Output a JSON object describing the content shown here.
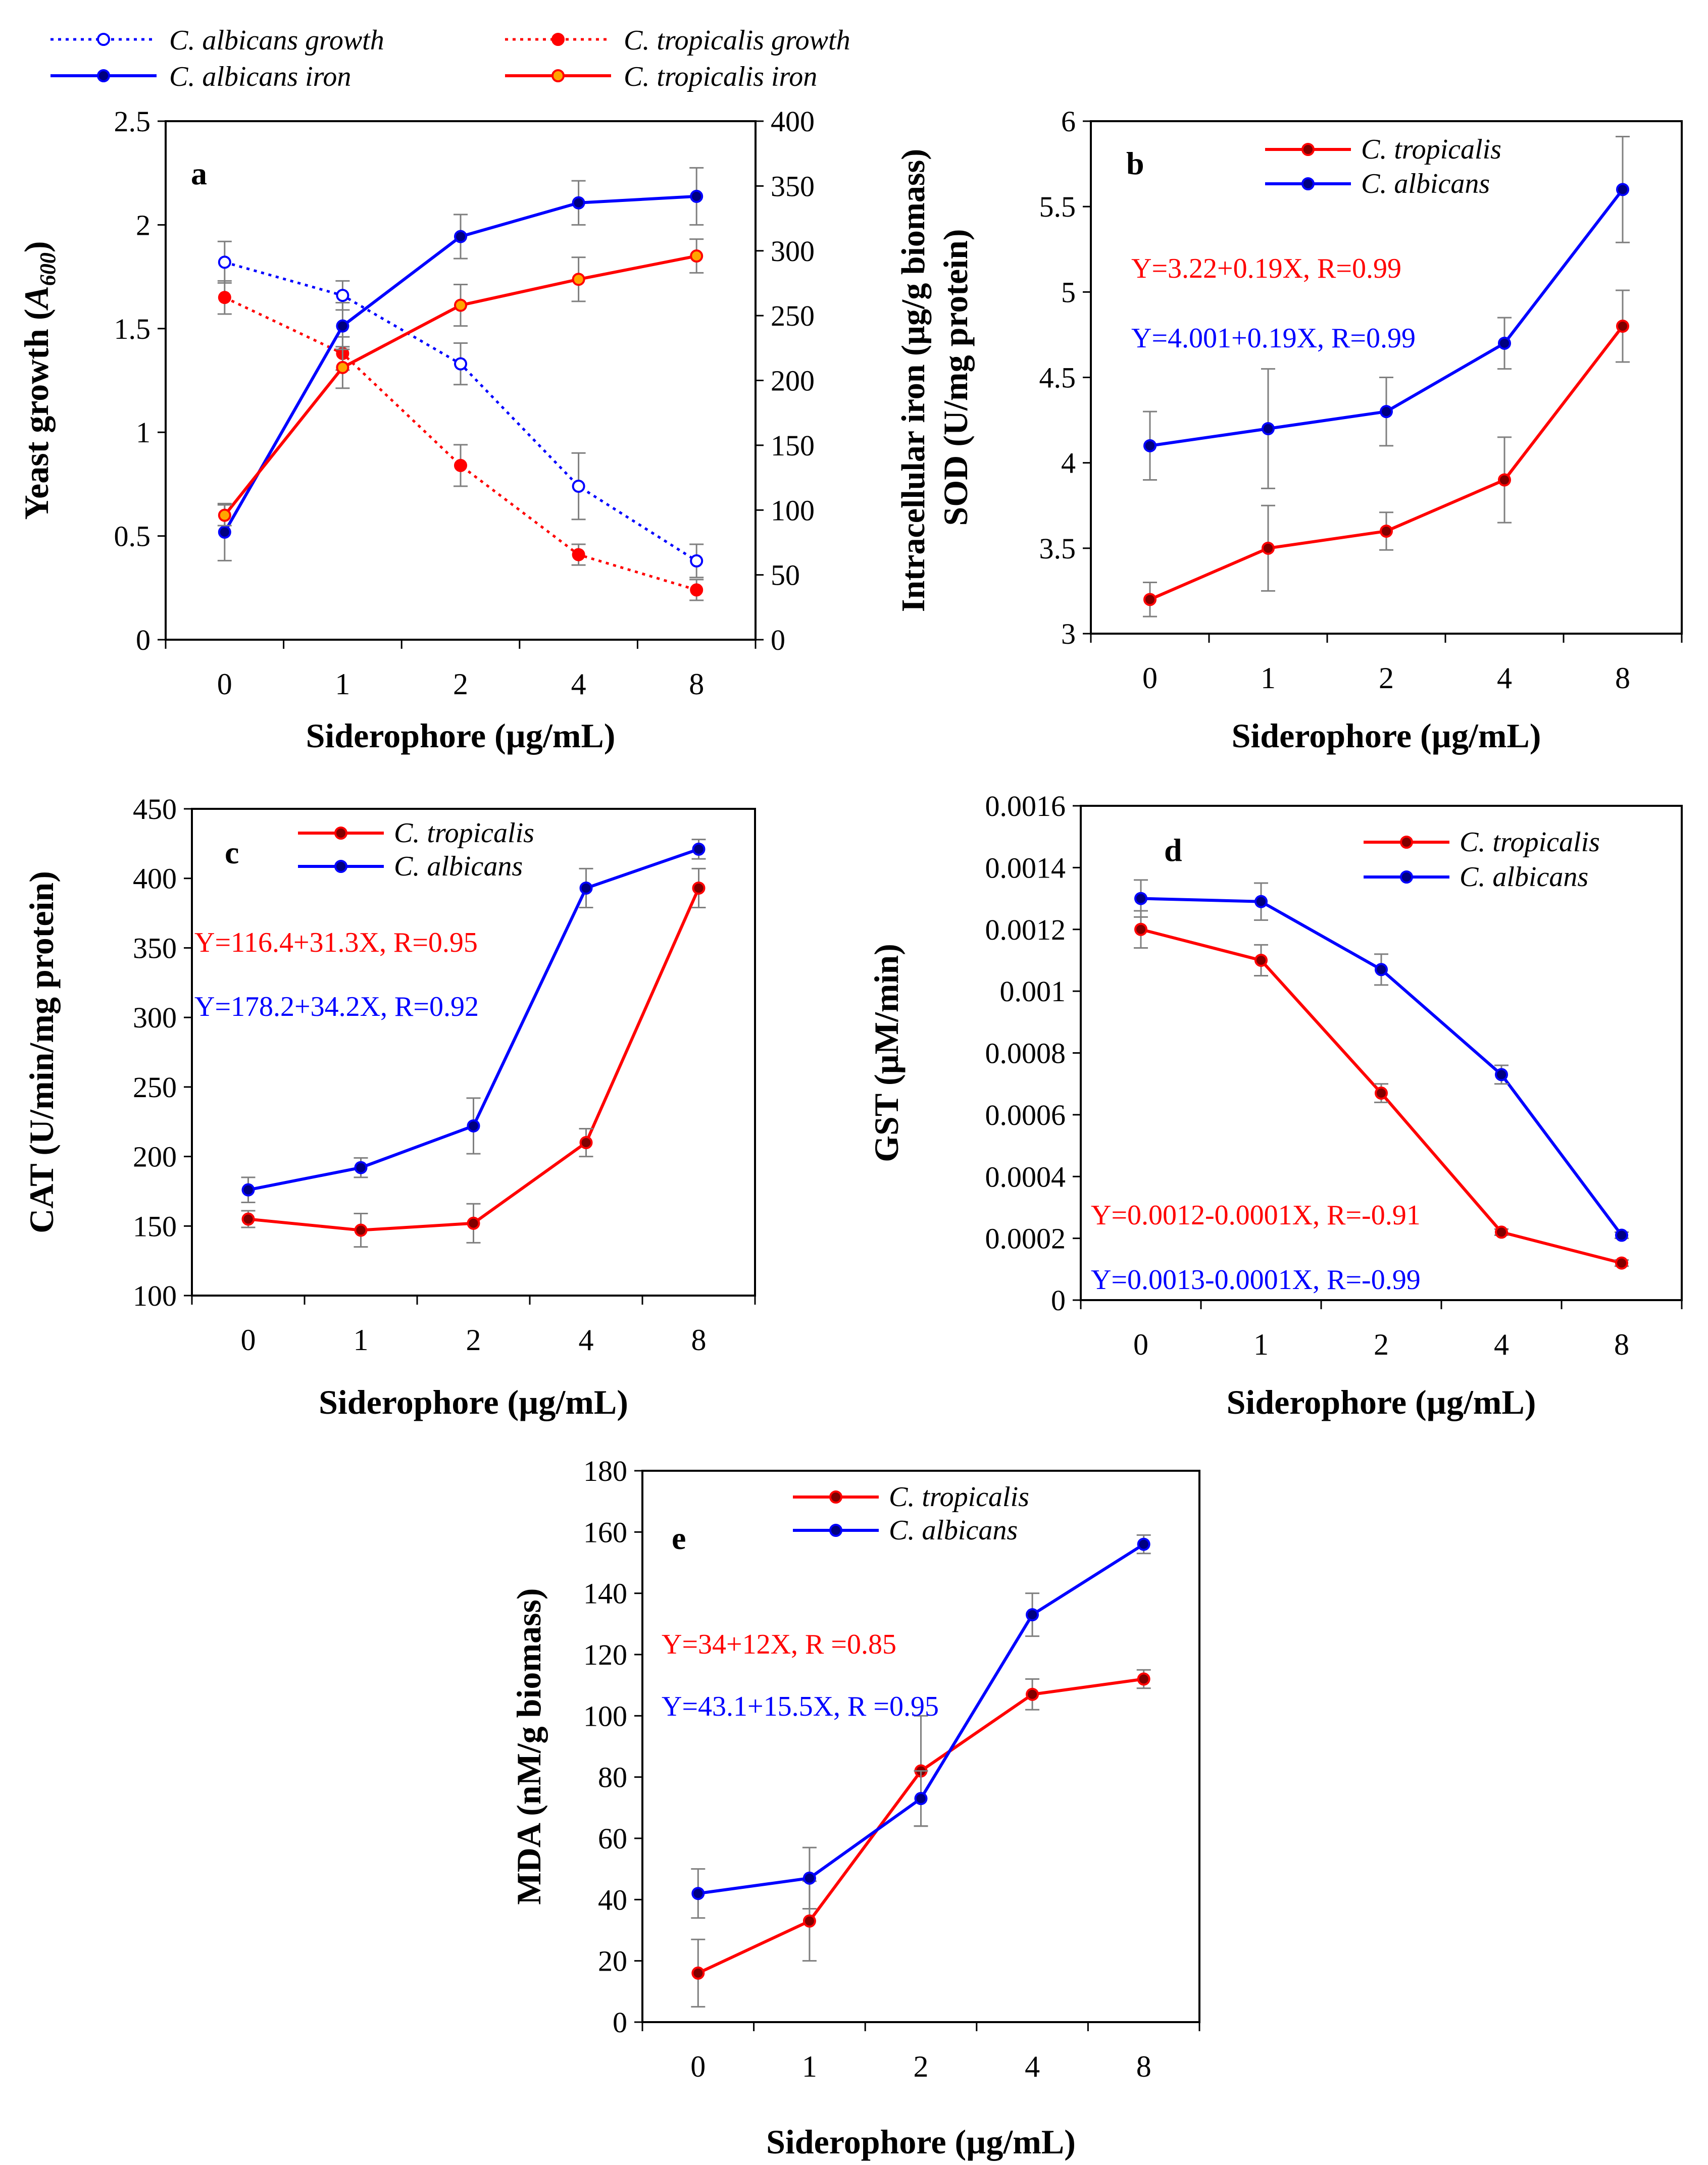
{
  "figure": {
    "x_label": "Siderophore (µg/mL)",
    "categories": [
      "0",
      "1",
      "2",
      "4",
      "8"
    ],
    "colors": {
      "red": "#ff0000",
      "blue": "#0000ff",
      "orange": "#ffa500",
      "dark_blue": "#00007f",
      "error": "#7f7f7f"
    }
  },
  "chart_data": [
    {
      "id": "a",
      "panel_label": "a",
      "type": "line",
      "categories": [
        "0",
        "1",
        "2",
        "4",
        "8"
      ],
      "xlabel": "Siderophore (µg/mL)",
      "ylabel": "Yeast growth (A600)",
      "ylabel_parts": [
        "Yeast growth (",
        "A",
        "600",
        ")"
      ],
      "ylim": [
        0,
        2.5
      ],
      "yticks": [
        0,
        0.5,
        1,
        1.5,
        2,
        2.5
      ],
      "ytick_labels": [
        "0",
        "0.5",
        "1",
        "1.5",
        "2",
        "2.5"
      ],
      "y2label": "Intracellular iron (µg/g biomass)",
      "y2lim": [
        0,
        400
      ],
      "y2ticks": [
        0,
        50,
        100,
        150,
        200,
        250,
        300,
        350,
        400
      ],
      "y2tick_labels": [
        "0",
        "50",
        "100",
        "150",
        "200",
        "250",
        "300",
        "350",
        "400"
      ],
      "legend": "top",
      "series": [
        {
          "name": "C. albicans growth",
          "axis": "left",
          "style": "dotted",
          "color": "#0000ff",
          "marker": "open",
          "values": [
            1.82,
            1.66,
            1.33,
            0.74,
            0.38
          ],
          "errors": [
            0.1,
            0.07,
            0.1,
            0.16,
            0.08
          ]
        },
        {
          "name": "C. tropicalis growth",
          "axis": "left",
          "style": "dotted",
          "color": "#ff0000",
          "marker": "filled",
          "marker_color": "#ff0000",
          "values": [
            1.65,
            1.38,
            0.84,
            0.41,
            0.24
          ],
          "errors": [
            0.08,
            0.08,
            0.1,
            0.05,
            0.05
          ]
        },
        {
          "name": "C. albicans iron",
          "axis": "right",
          "style": "solid",
          "color": "#0000ff",
          "marker": "filled",
          "marker_color": "#00007f",
          "values": [
            83,
            242,
            311,
            337,
            342
          ],
          "errors": [
            22,
            18,
            17,
            17,
            22
          ]
        },
        {
          "name": "C. tropicalis iron",
          "axis": "right",
          "style": "solid",
          "color": "#ff0000",
          "marker": "filled",
          "marker_color": "#ffa500",
          "values": [
            96,
            210,
            258,
            278,
            296
          ],
          "errors": [
            8,
            16,
            16,
            17,
            13
          ]
        }
      ]
    },
    {
      "id": "b",
      "panel_label": "b",
      "type": "line",
      "categories": [
        "0",
        "1",
        "2",
        "4",
        "8"
      ],
      "xlabel": "Siderophore (µg/mL)",
      "ylabel": "SOD (U/mg protein)",
      "ylim": [
        3,
        6
      ],
      "yticks": [
        3,
        3.5,
        4,
        4.5,
        5,
        5.5,
        6
      ],
      "ytick_labels": [
        "3",
        "3.5",
        "4",
        "4.5",
        "5",
        "5.5",
        "6"
      ],
      "legend": "top-center",
      "equations": [
        "Y=3.22+0.19X, R=0.99",
        "Y=4.001+0.19X, R=0.99"
      ],
      "series": [
        {
          "name": "C. tropicalis",
          "color": "#ff0000",
          "values": [
            3.2,
            3.5,
            3.6,
            3.9,
            4.8
          ],
          "errors": [
            0.1,
            0.25,
            0.11,
            0.25,
            0.21
          ]
        },
        {
          "name": "C. albicans",
          "color": "#0000ff",
          "values": [
            4.1,
            4.2,
            4.3,
            4.7,
            5.6
          ],
          "errors": [
            0.2,
            0.35,
            0.2,
            0.15,
            0.31
          ]
        }
      ]
    },
    {
      "id": "c",
      "panel_label": "c",
      "type": "line",
      "categories": [
        "0",
        "1",
        "2",
        "4",
        "8"
      ],
      "xlabel": "Siderophore (µg/mL)",
      "ylabel": "CAT (U/min/mg protein)",
      "ylim": [
        100,
        450
      ],
      "yticks": [
        100,
        150,
        200,
        250,
        300,
        350,
        400,
        450
      ],
      "ytick_labels": [
        "100",
        "150",
        "200",
        "250",
        "300",
        "350",
        "400",
        "450"
      ],
      "legend": "top-center",
      "equations": [
        "Y=116.4+31.3X, R=0.95",
        "Y=178.2+34.2X, R=0.92"
      ],
      "series": [
        {
          "name": "C. tropicalis",
          "color": "#ff0000",
          "values": [
            155,
            147,
            152,
            210,
            393
          ],
          "errors": [
            6,
            12,
            14,
            10,
            14
          ]
        },
        {
          "name": "C. albicans",
          "color": "#0000ff",
          "values": [
            176,
            192,
            222,
            393,
            421
          ],
          "errors": [
            9,
            7,
            20,
            14,
            7
          ]
        }
      ]
    },
    {
      "id": "d",
      "panel_label": "d",
      "type": "line",
      "categories": [
        "0",
        "1",
        "2",
        "4",
        "8"
      ],
      "xlabel": "Siderophore (µg/mL)",
      "ylabel": "GST (µM/min)",
      "ylim": [
        0,
        0.0016
      ],
      "yticks": [
        0,
        0.0002,
        0.0004,
        0.0006,
        0.0008,
        0.001,
        0.0012,
        0.0014,
        0.0016
      ],
      "ytick_labels": [
        "0",
        "0.0002",
        "0.0004",
        "0.0006",
        "0.0008",
        "0.001",
        "0.0012",
        "0.0014",
        "0.0016"
      ],
      "legend": "top-right",
      "equations": [
        "Y=0.0012-0.0001X, R=-0.91",
        "Y=0.0013-0.0001X, R=-0.99"
      ],
      "series": [
        {
          "name": "C. tropicalis",
          "color": "#ff0000",
          "values": [
            0.0012,
            0.0011,
            0.00067,
            0.00022,
            0.00012
          ],
          "errors": [
            6e-05,
            5e-05,
            3e-05,
            1e-05,
            1e-05
          ]
        },
        {
          "name": "C. albicans",
          "color": "#0000ff",
          "values": [
            0.0013,
            0.00129,
            0.00107,
            0.00073,
            0.00021
          ],
          "errors": [
            6e-05,
            6e-05,
            5e-05,
            3e-05,
            1e-05
          ]
        }
      ]
    },
    {
      "id": "e",
      "panel_label": "e",
      "type": "line",
      "categories": [
        "0",
        "1",
        "2",
        "4",
        "8"
      ],
      "xlabel": "Siderophore (µg/mL)",
      "ylabel": "MDA (nM/g biomass)",
      "ylim": [
        0,
        180
      ],
      "yticks": [
        0,
        20,
        40,
        60,
        80,
        100,
        120,
        140,
        160,
        180
      ],
      "ytick_labels": [
        "0",
        "20",
        "40",
        "60",
        "80",
        "100",
        "120",
        "140",
        "160",
        "180"
      ],
      "legend": "top-center",
      "equations": [
        "Y=34+12X, R =0.85",
        "Y=43.1+15.5X, R =0.95"
      ],
      "series": [
        {
          "name": "C. tropicalis",
          "color": "#ff0000",
          "values": [
            16,
            33,
            82,
            107,
            112
          ],
          "errors": [
            11,
            13,
            18,
            5,
            3
          ]
        },
        {
          "name": "C. albicans",
          "color": "#0000ff",
          "values": [
            42,
            47,
            73,
            133,
            156
          ],
          "errors": [
            8,
            10,
            9,
            7,
            3
          ]
        }
      ]
    }
  ]
}
